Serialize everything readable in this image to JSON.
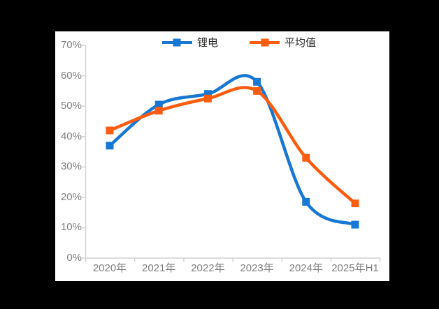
{
  "theme": {
    "bg": "#000000",
    "panel_bg": "#ffffff",
    "axis_line": "#d2d2d2",
    "axis_label": "#7f7f7f",
    "legend_text": "#262626"
  },
  "chart_data": {
    "type": "line",
    "title": "",
    "categories": [
      "2020年",
      "2021年",
      "2022年",
      "2023年",
      "2024年",
      "2025年H1"
    ],
    "series": [
      {
        "name": "锂电",
        "color": "#1777d3",
        "values": [
          37,
          50.5,
          54,
          58,
          18.5,
          11
        ]
      },
      {
        "name": "平均值",
        "color": "#fb5d10",
        "values": [
          42,
          48.5,
          52.5,
          55,
          33,
          18
        ]
      }
    ],
    "xlabel": "",
    "ylabel": "",
    "ylim": [
      0,
      70
    ],
    "y_tick_step": 10,
    "y_tick_labels": [
      "70%",
      "60%",
      "50%",
      "40%",
      "30%",
      "20%",
      "10%",
      "0%"
    ],
    "grid": false,
    "legend_position": "top",
    "smooth": true,
    "marker": "square"
  }
}
